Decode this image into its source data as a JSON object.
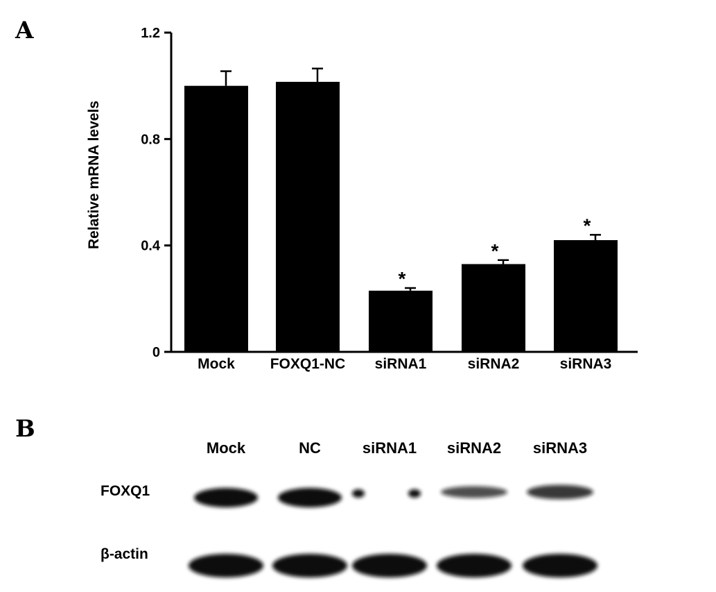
{
  "panel_a_label": "A",
  "panel_b_label": "B",
  "chart_data": {
    "type": "bar",
    "title": "",
    "xlabel": "",
    "ylabel": "Relative mRNA levels",
    "categories": [
      "Mock",
      "FOXQ1-NC",
      "siRNA1",
      "siRNA2",
      "siRNA3"
    ],
    "values": [
      1.0,
      1.015,
      0.23,
      0.33,
      0.42
    ],
    "errors": [
      0.055,
      0.05,
      0.01,
      0.015,
      0.02
    ],
    "significance": [
      "",
      "",
      "*",
      "*",
      "*"
    ],
    "yticks": [
      "0",
      "0.4",
      "0.8",
      "1.2"
    ],
    "ylim": [
      0,
      1.2
    ],
    "bar_color": "#000000",
    "grid": false,
    "legend": "none"
  },
  "blot": {
    "lanes": [
      "Mock",
      "NC",
      "siRNA1",
      "siRNA2",
      "siRNA3"
    ],
    "rows": [
      {
        "label": "FOXQ1",
        "intensity": [
          1.0,
          1.0,
          0.15,
          0.4,
          0.6
        ]
      },
      {
        "label": "β-actin",
        "intensity": [
          1.0,
          1.0,
          1.0,
          1.0,
          1.0
        ]
      }
    ],
    "band_color": "#111111"
  }
}
